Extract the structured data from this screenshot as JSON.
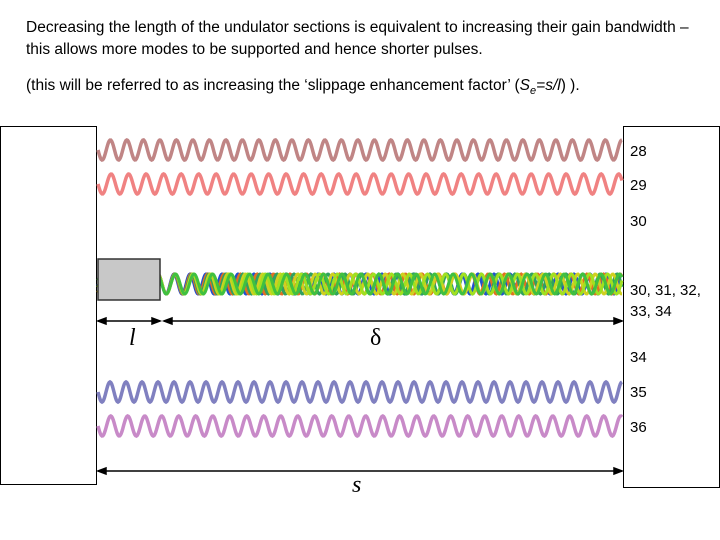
{
  "text": {
    "paragraph_1": "Decreasing the length of the undulator sections is equivalent to increasing their gain bandwidth – this allows more modes to be supported and hence shorter pulses.",
    "paragraph_2_prefix": "(this will be referred to as increasing the ‘slippage enhancement factor’ (",
    "paragraph_2_S": "S",
    "paragraph_2_sub": "e",
    "paragraph_2_eq": "=s/l",
    "paragraph_2_suffix": ") )."
  },
  "mode_labels": {
    "m28": "28",
    "m29": "29",
    "m30": "30",
    "group_line1": "30, 31, 32,",
    "group_line2": "33, 34",
    "m34": "34",
    "m35": "35",
    "m36": "36"
  },
  "symbols": {
    "undulator_length": "l",
    "slippage": "δ",
    "separation": "s"
  },
  "colors": {
    "m28": "#c08585",
    "m29": "#f08282",
    "m30_group": [
      "#2050d0",
      "#e07020",
      "#30a060",
      "#d0d020",
      "#a0e020",
      "#40c040"
    ],
    "m34": "#8080c0",
    "m35": "#8a86c8",
    "m36": "#c88ac8",
    "gray_box": "#c8c8c8"
  }
}
